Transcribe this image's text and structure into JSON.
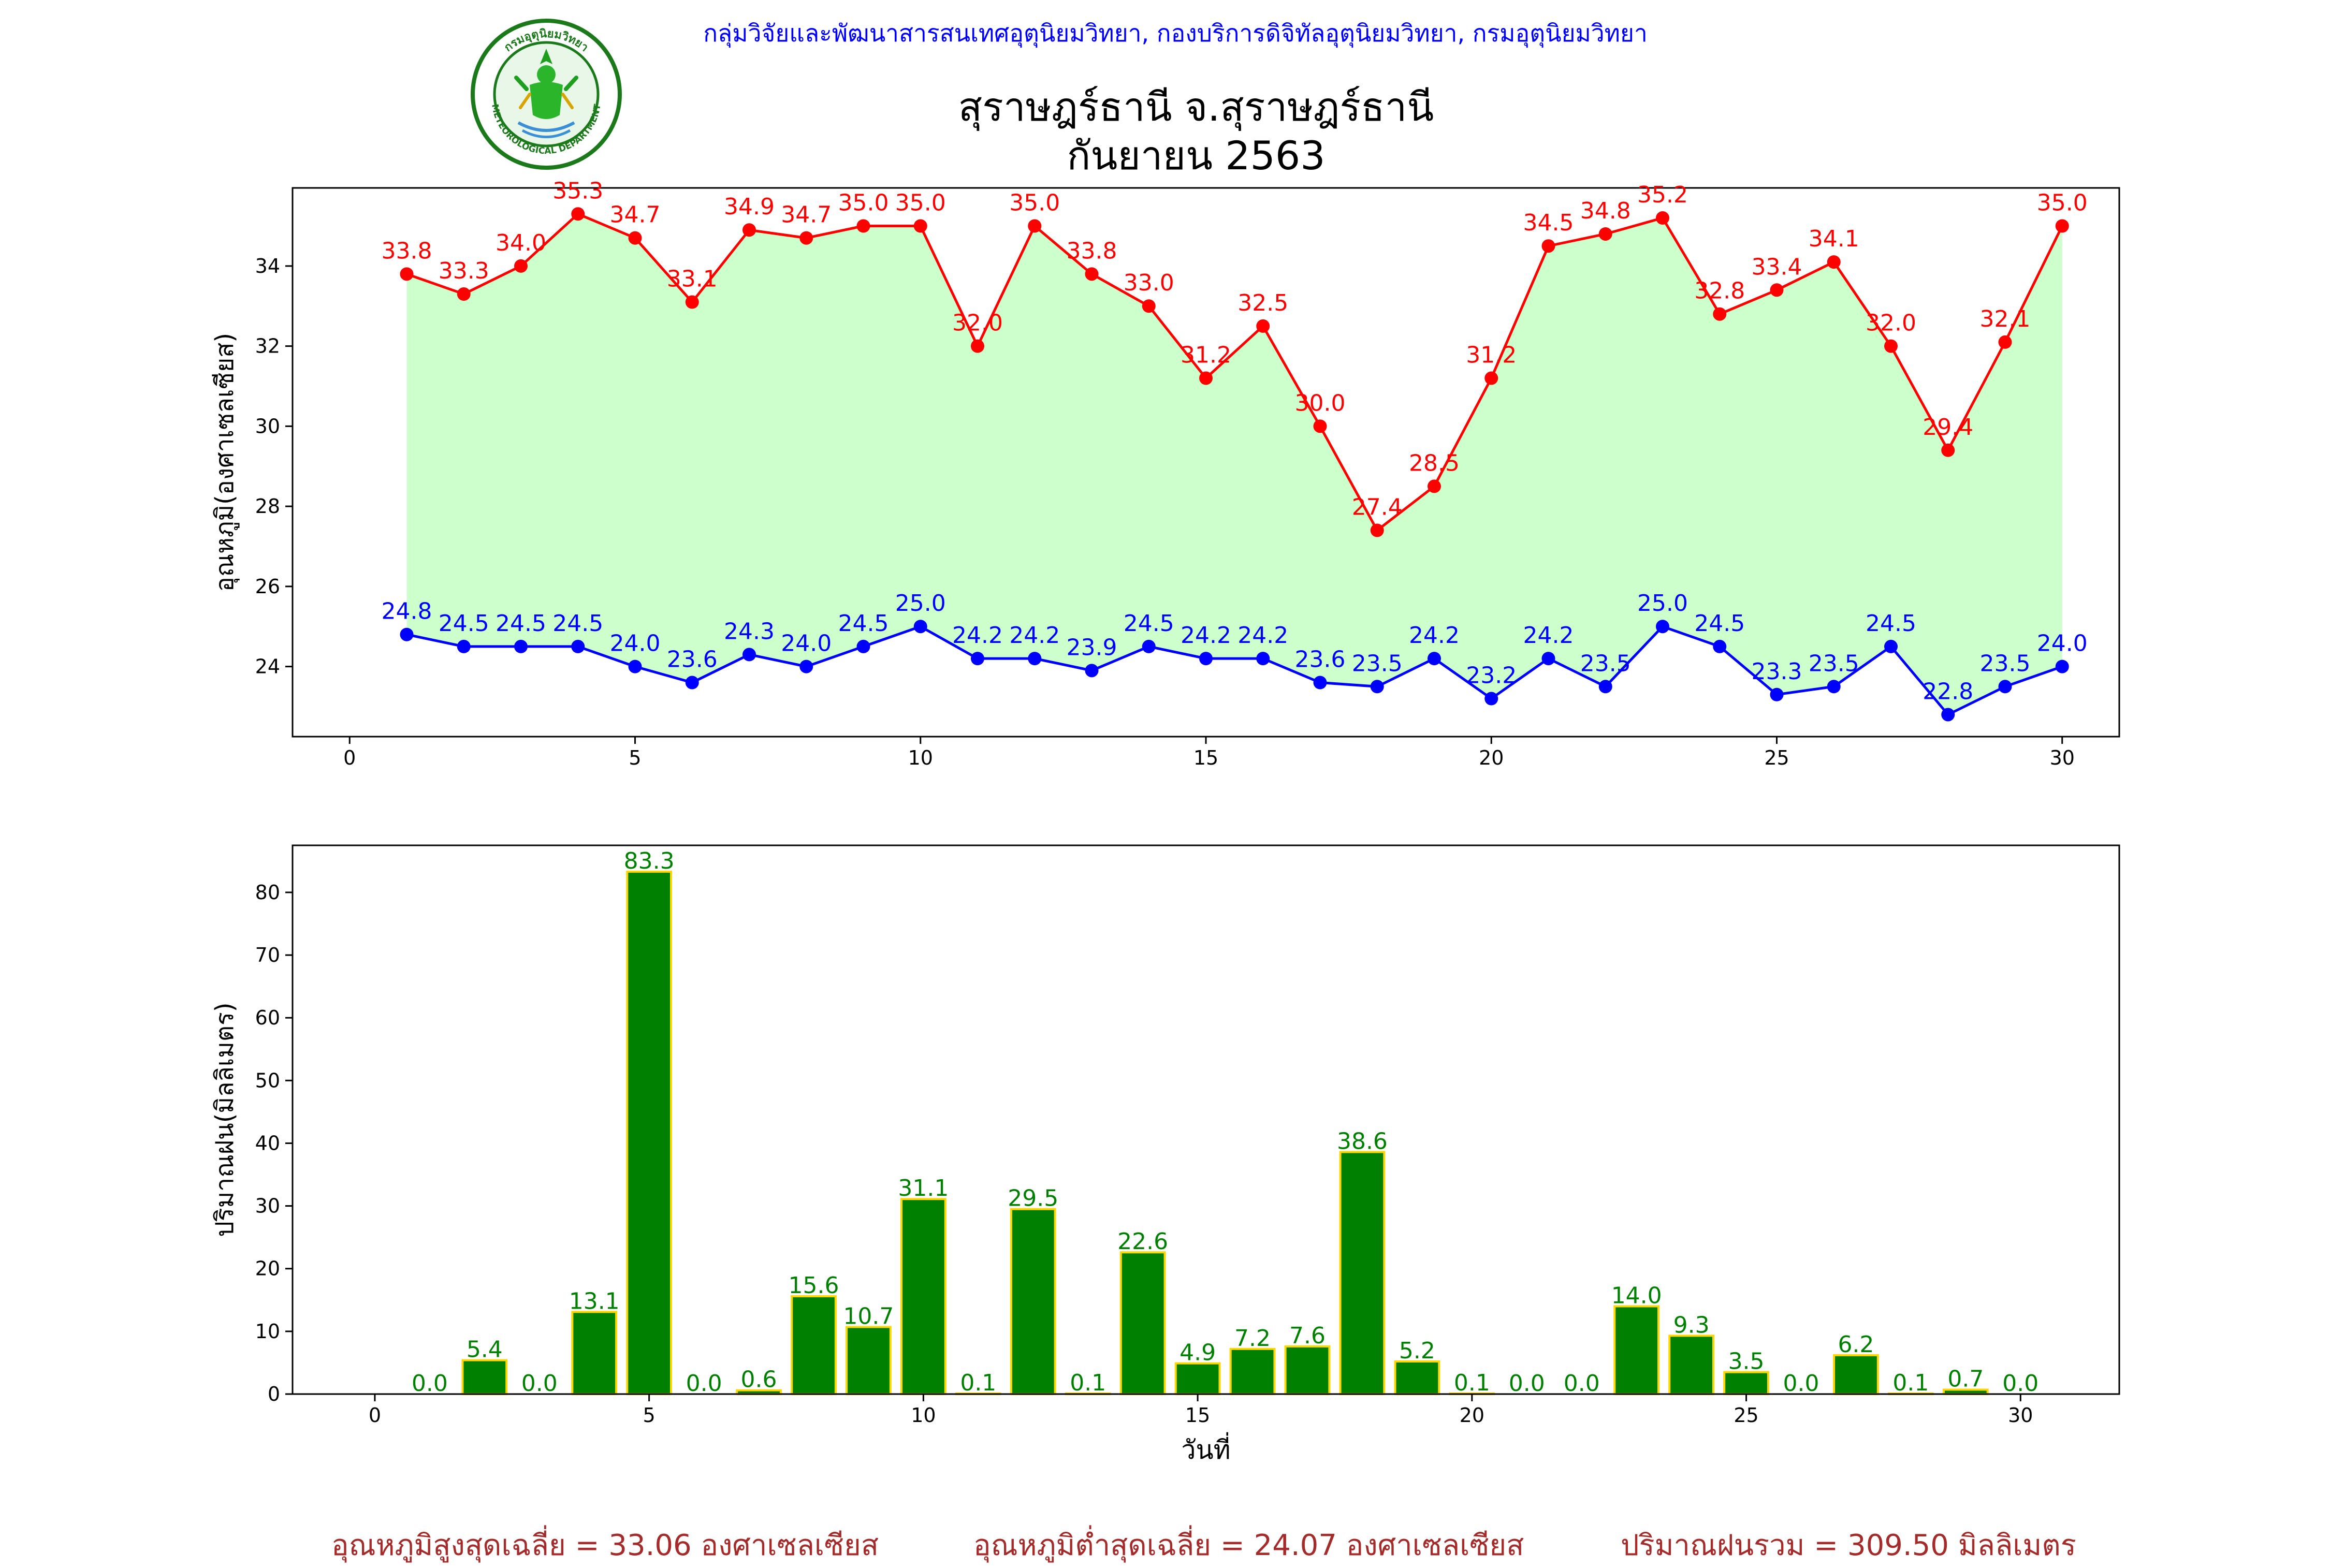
{
  "header": {
    "agency": "กลุ่มวิจัยและพัฒนาสารสนเทศอุตุนิยมวิทยา, กองบริการดิจิทัลอุตุนิยมวิทยา, กรมอุตุนิยมวิทยา",
    "station": "สุราษฎร์ธานี จ.สุราษฎร์ธานี",
    "period": "กันยายน 2563",
    "logo_text": "METEOROLOGICAL DEPARTMENT",
    "logo_top_text": "กรมอุตุนิยมวิทยา"
  },
  "colors": {
    "max": "#ff0000",
    "min": "#0000ff",
    "fill": "#ccffcc",
    "bar": "#008000",
    "bar_edge": "#ffd700",
    "summary": "#a52a2a"
  },
  "chart_data": [
    {
      "type": "line",
      "ylabel": "อุณหภูมิ(องศาเซลเซียส)",
      "xlabel": "",
      "xlim": [
        -1,
        31
      ],
      "ylim": [
        22.25,
        35.95
      ],
      "xticks": [
        0,
        5,
        10,
        15,
        20,
        25,
        30
      ],
      "yticks": [
        24,
        26,
        28,
        30,
        32,
        34
      ],
      "x": [
        1,
        2,
        3,
        4,
        5,
        6,
        7,
        8,
        9,
        10,
        11,
        12,
        13,
        14,
        15,
        16,
        17,
        18,
        19,
        20,
        21,
        22,
        23,
        24,
        25,
        26,
        27,
        28,
        29,
        30
      ],
      "series": [
        {
          "key": "max",
          "values": [
            33.8,
            33.3,
            34.0,
            35.3,
            34.7,
            33.1,
            34.9,
            34.7,
            35.0,
            35.0,
            32.0,
            35.0,
            33.8,
            33.0,
            31.2,
            32.5,
            30.0,
            27.4,
            28.5,
            31.2,
            34.5,
            34.8,
            35.2,
            32.8,
            33.4,
            34.1,
            32.0,
            29.4,
            32.1,
            35.0
          ]
        },
        {
          "key": "min",
          "values": [
            24.8,
            24.5,
            24.5,
            24.5,
            24.0,
            23.6,
            24.3,
            24.0,
            24.5,
            25.0,
            24.2,
            24.2,
            23.9,
            24.5,
            24.2,
            24.2,
            23.6,
            23.5,
            24.2,
            23.2,
            24.2,
            23.5,
            25.0,
            24.5,
            23.3,
            23.5,
            24.5,
            22.8,
            23.5,
            24.0
          ]
        }
      ],
      "grid": false
    },
    {
      "type": "bar",
      "ylabel": "ปริมาณฝน(มิลลิเมตร)",
      "xlabel": "วันที่",
      "xlim": [
        -1.5,
        31.8
      ],
      "ylim": [
        0,
        87.5
      ],
      "xticks": [
        0,
        5,
        10,
        15,
        20,
        25,
        30
      ],
      "yticks": [
        0,
        10,
        20,
        30,
        40,
        50,
        60,
        70,
        80
      ],
      "x": [
        1,
        2,
        3,
        4,
        5,
        6,
        7,
        8,
        9,
        10,
        11,
        12,
        13,
        14,
        15,
        16,
        17,
        18,
        19,
        20,
        21,
        22,
        23,
        24,
        25,
        26,
        27,
        28,
        29,
        30
      ],
      "values": [
        0.0,
        5.4,
        0.0,
        13.1,
        83.3,
        0.0,
        0.6,
        15.6,
        10.7,
        31.1,
        0.1,
        29.5,
        0.1,
        22.6,
        4.9,
        7.2,
        7.6,
        38.6,
        5.2,
        0.1,
        0.0,
        0.0,
        14.0,
        9.3,
        3.5,
        0.0,
        6.2,
        0.1,
        0.7,
        0.0
      ],
      "grid": false
    }
  ],
  "summary": {
    "avg_max": "อุณหภูมิสูงสุดเฉลี่ย = 33.06 องศาเซลเซียส",
    "avg_min": "อุณหภูมิต่ำสุดเฉลี่ย = 24.07 องศาเซลเซียส",
    "total_rain": "ปริมาณฝนรวม = 309.50 มิลลิเมตร"
  }
}
